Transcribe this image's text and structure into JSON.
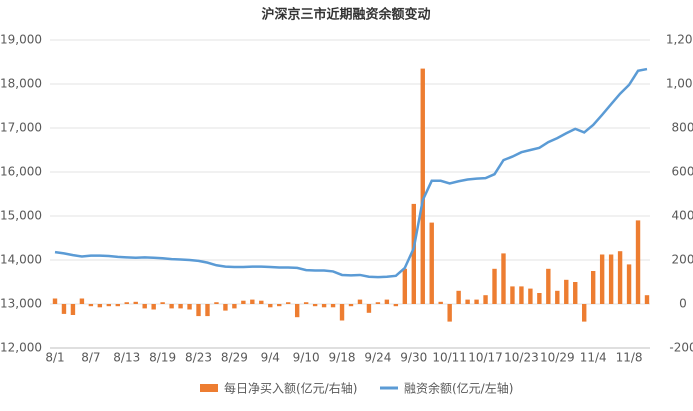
{
  "chart_data": {
    "type": "bar-line",
    "title": "沪深京三市近期融资余额变动",
    "categories": [
      "8/1",
      null,
      null,
      null,
      "8/7",
      null,
      null,
      null,
      "8/13",
      null,
      null,
      null,
      "8/19",
      null,
      null,
      null,
      "8/23",
      null,
      null,
      null,
      "8/29",
      null,
      null,
      null,
      "9/4",
      null,
      null,
      null,
      "9/10",
      null,
      null,
      null,
      "9/18",
      null,
      null,
      null,
      "9/24",
      null,
      null,
      null,
      "9/30",
      null,
      null,
      null,
      "10/11",
      null,
      null,
      null,
      "10/17",
      null,
      null,
      null,
      "10/23",
      null,
      null,
      null,
      "10/29",
      null,
      null,
      null,
      "11/4",
      null,
      null,
      null,
      "11/8",
      null,
      null
    ],
    "series": [
      {
        "name": "每日净买入额(亿元/右轴)",
        "color": "#ed7d31",
        "axis": "y2",
        "kind": "bar",
        "values": [
          25,
          -45,
          -50,
          25,
          -10,
          -15,
          -10,
          -10,
          8,
          10,
          -20,
          -25,
          8,
          -20,
          -20,
          -25,
          -55,
          -55,
          8,
          -30,
          -20,
          15,
          20,
          15,
          -15,
          -10,
          8,
          -60,
          8,
          -10,
          -15,
          -15,
          -75,
          -10,
          20,
          -40,
          8,
          20,
          -10,
          160,
          455,
          1070,
          370,
          10,
          -80,
          60,
          20,
          20,
          40,
          160,
          230,
          80,
          80,
          70,
          50,
          160,
          60,
          110,
          100,
          -80,
          150,
          225,
          225,
          240,
          180,
          380,
          40
        ]
      },
      {
        "name": "融资余额(亿元/左轴)",
        "color": "#5b9bd5",
        "axis": "y",
        "kind": "line",
        "values": [
          14180,
          14150,
          14110,
          14080,
          14100,
          14100,
          14090,
          14070,
          14060,
          14050,
          14060,
          14050,
          14040,
          14020,
          14010,
          14000,
          13980,
          13940,
          13880,
          13850,
          13840,
          13840,
          13850,
          13850,
          13840,
          13830,
          13830,
          13820,
          13770,
          13760,
          13760,
          13740,
          13660,
          13650,
          13660,
          13620,
          13610,
          13620,
          13640,
          13820,
          14270,
          15360,
          15800,
          15800,
          15740,
          15790,
          15830,
          15850,
          15860,
          15950,
          16270,
          16350,
          16450,
          16500,
          16550,
          16680,
          16770,
          16880,
          16980,
          16900,
          17070,
          17300,
          17540,
          17780,
          17980,
          18300,
          18340
        ]
      }
    ],
    "ylim": [
      12000,
      19000
    ],
    "yticks": [
      {
        "value": 12000,
        "label": "12,000"
      },
      {
        "value": 13000,
        "label": "13,000"
      },
      {
        "value": 14000,
        "label": "14,000"
      },
      {
        "value": 15000,
        "label": "15,000"
      },
      {
        "value": 16000,
        "label": "16,000"
      },
      {
        "value": 17000,
        "label": "17,000"
      },
      {
        "value": 18000,
        "label": "18,000"
      },
      {
        "value": 19000,
        "label": "19,000"
      }
    ],
    "y2lim": [
      -200,
      1200
    ],
    "y2ticks": [
      -200,
      0,
      200,
      400,
      600,
      800,
      {
        "value": 1000,
        "label": "1,000"
      },
      {
        "value": 1200,
        "label": "1,200"
      }
    ],
    "grid": true,
    "legend": "bottom"
  }
}
